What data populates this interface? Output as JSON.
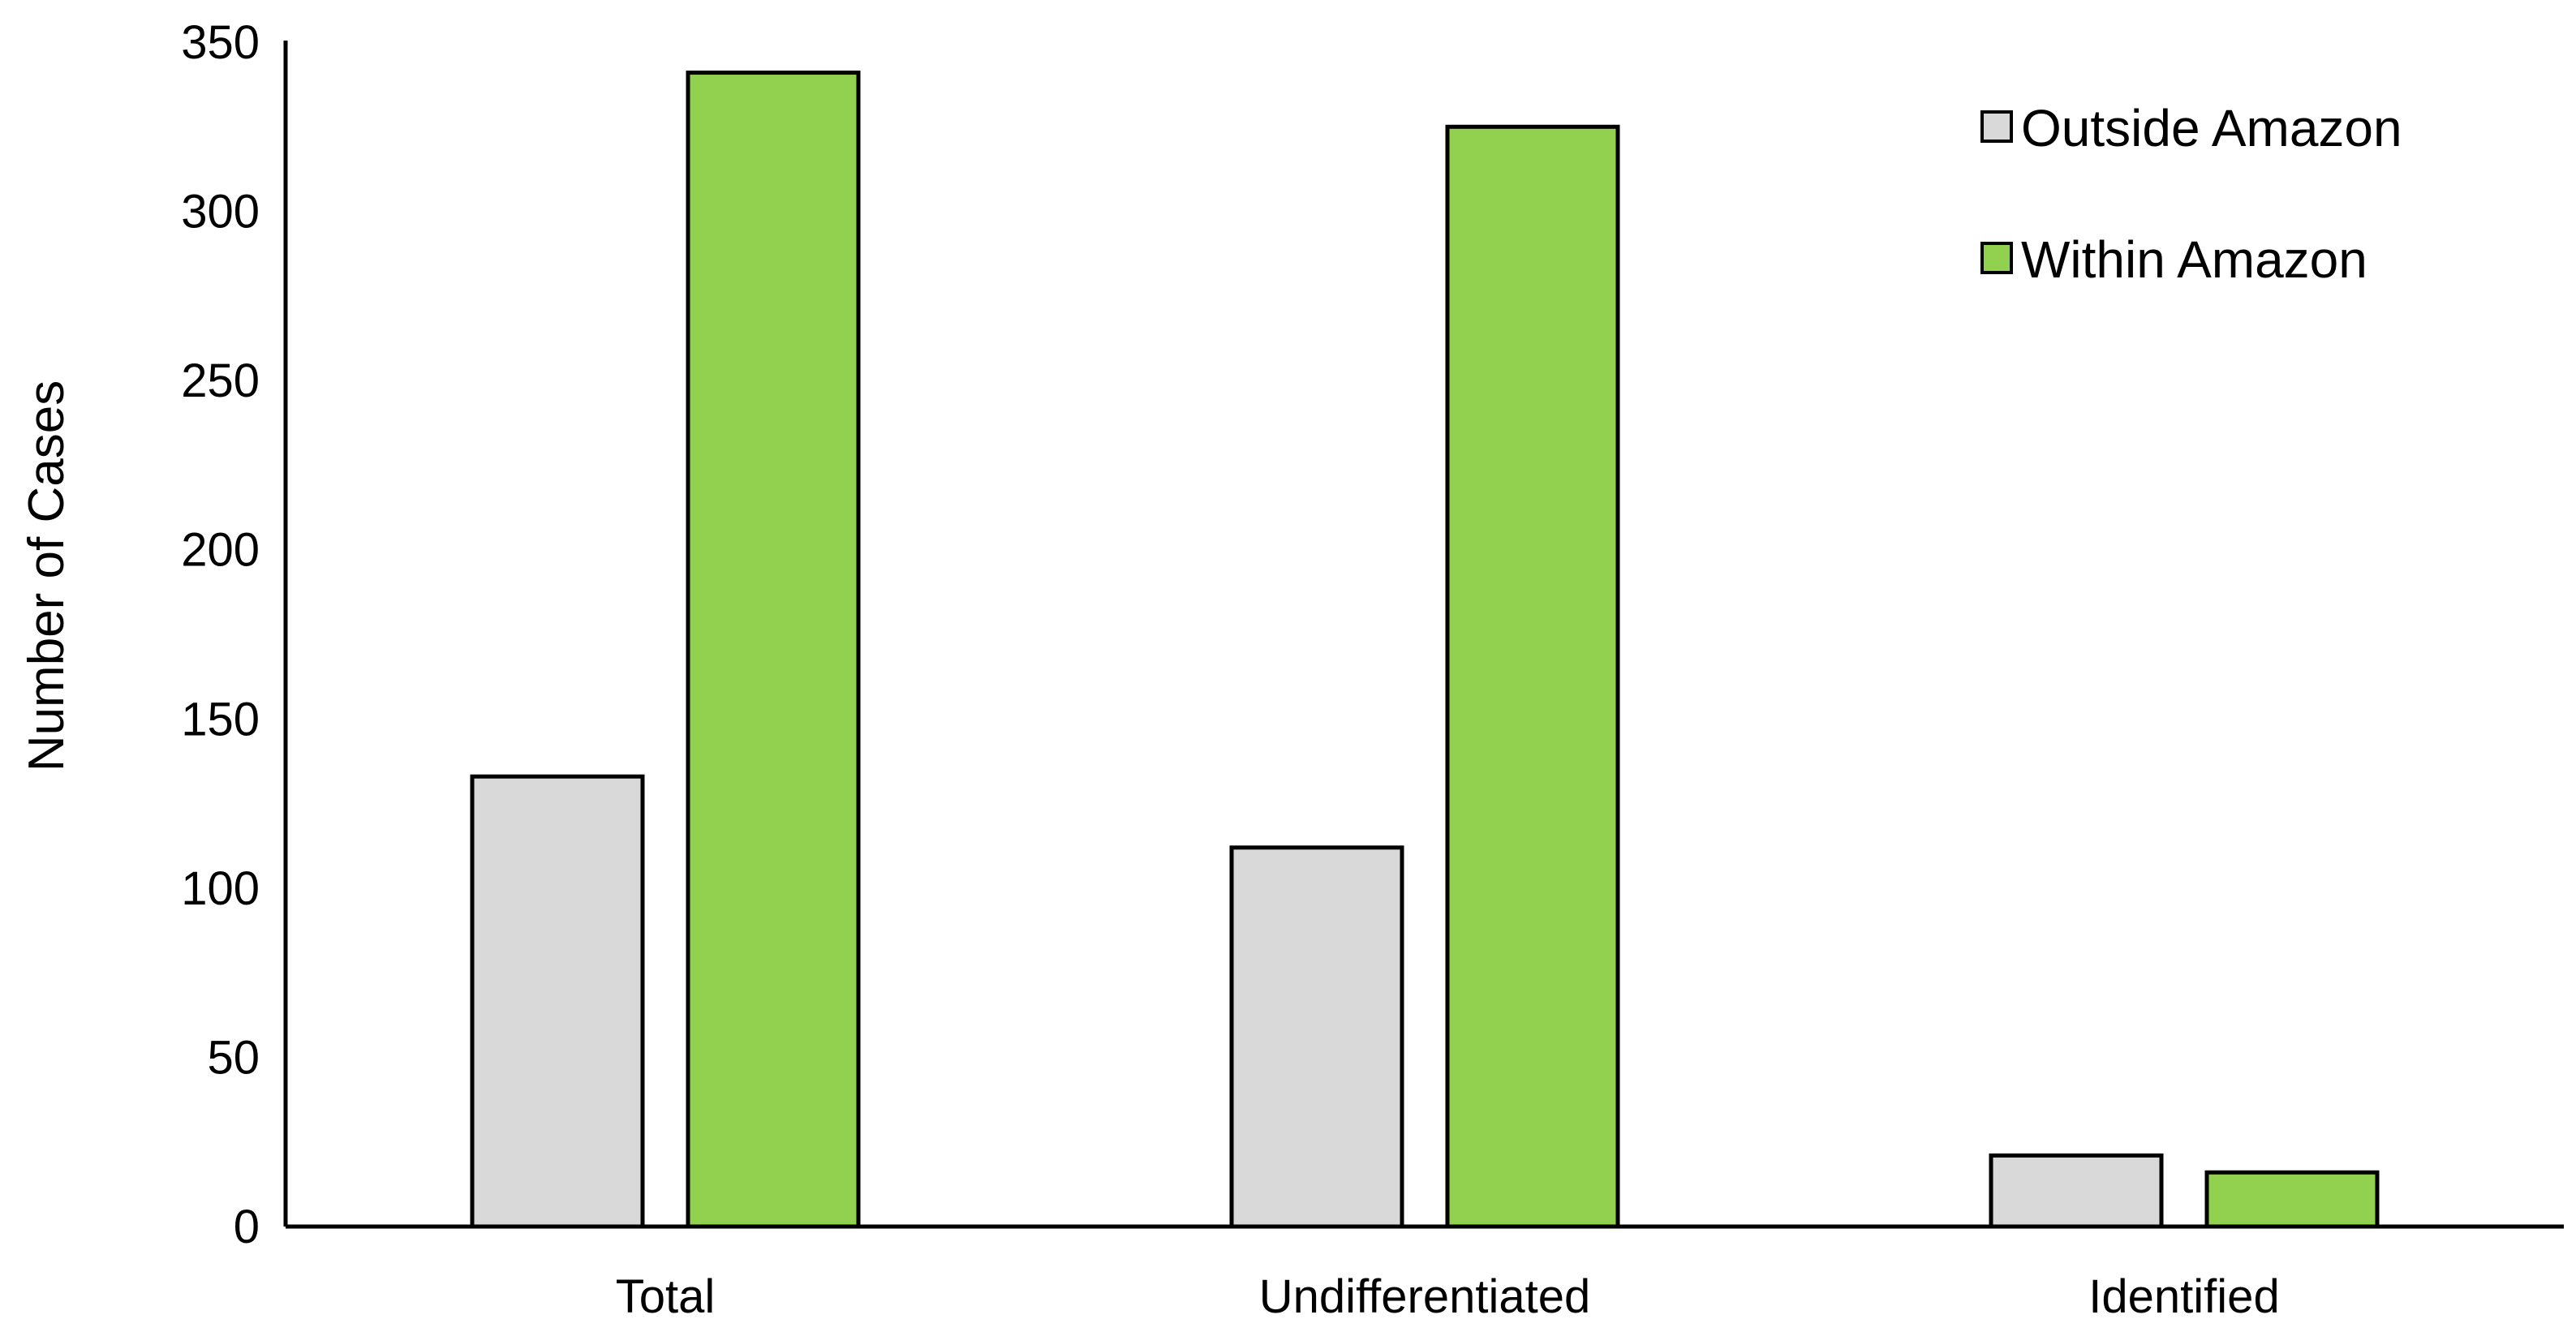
{
  "chart_data": {
    "type": "bar",
    "title": "",
    "xlabel": "",
    "ylabel": "Number of Cases",
    "ylim": [
      0,
      350
    ],
    "yticks": [
      0,
      50,
      100,
      150,
      200,
      250,
      300,
      350
    ],
    "categories": [
      "Total",
      "Undifferentiated",
      "Identified"
    ],
    "series": [
      {
        "name": "Outside Amazon",
        "color": "#d9d9d9",
        "values": [
          133,
          112,
          21
        ]
      },
      {
        "name": "Within Amazon",
        "color": "#92d050",
        "values": [
          341,
          325,
          16
        ]
      }
    ],
    "grid": false,
    "legend_position": "top-right"
  }
}
